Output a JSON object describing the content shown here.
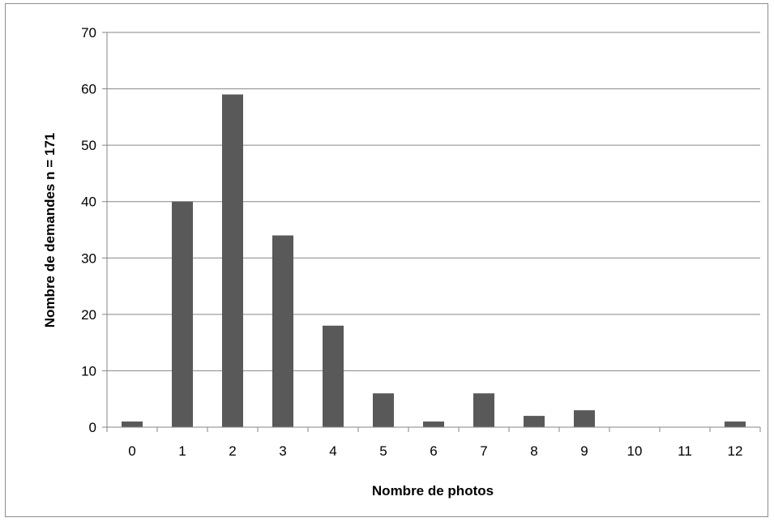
{
  "chart_data": {
    "type": "bar",
    "title": "",
    "xlabel": "Nombre de photos",
    "ylabel": "Nombre de demandes n = 171",
    "categories": [
      "0",
      "1",
      "2",
      "3",
      "4",
      "5",
      "6",
      "7",
      "8",
      "9",
      "10",
      "11",
      "12"
    ],
    "values": [
      1,
      40,
      59,
      34,
      18,
      6,
      1,
      6,
      2,
      3,
      0,
      0,
      1
    ],
    "ylim": [
      0,
      70
    ],
    "yticks": [
      "0",
      "10",
      "20",
      "30",
      "40",
      "50",
      "60",
      "70"
    ],
    "grid": true,
    "legend": "none",
    "bar_color": "#595959",
    "grid_color": "#868686"
  }
}
